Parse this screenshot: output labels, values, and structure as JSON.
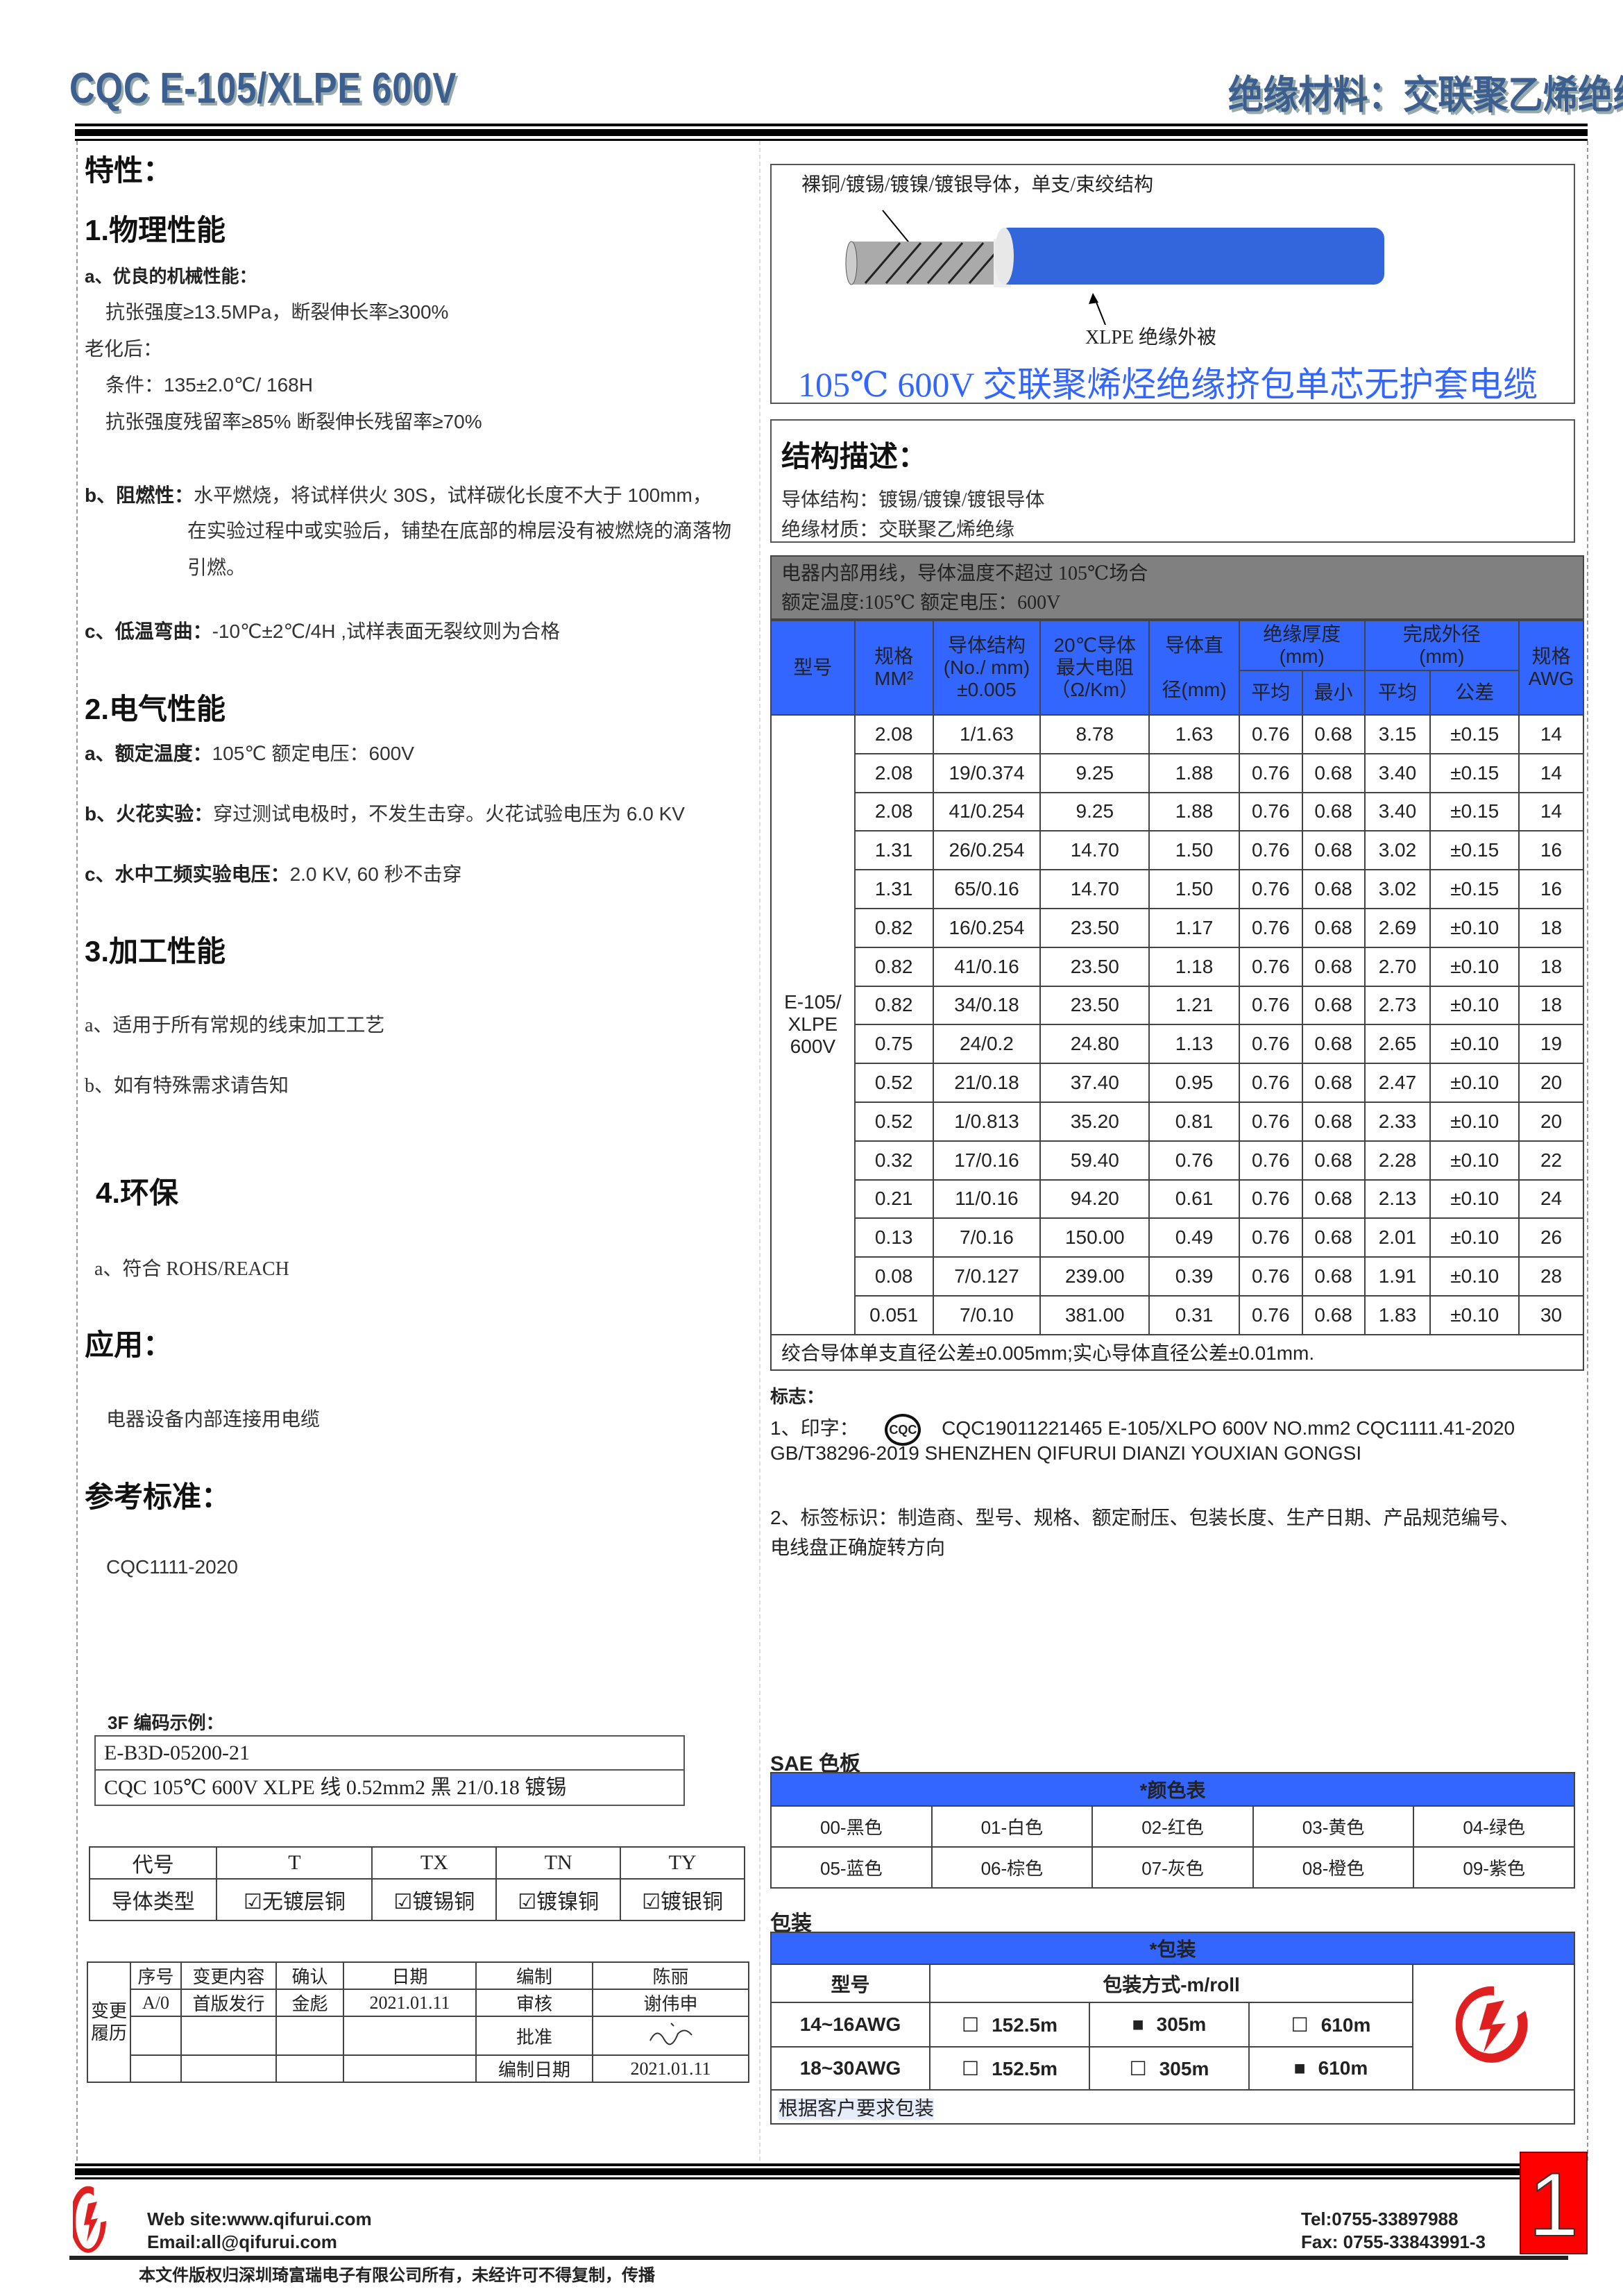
{
  "header": {
    "title": "CQC E-105/XLPE 600V",
    "subtitle": "绝缘材料：交联聚乙烯绝缘"
  },
  "left": {
    "features_title": "特性：",
    "physical": {
      "title": "1.物理性能",
      "a_label": "a、优良的机械性能：",
      "a_line1": "抗张强度≥13.5MPa，断裂伸长率≥300%",
      "aging": "老化后：",
      "cond": "条件：135±2.0℃/ 168H",
      "retain": "抗张强度残留率≥85%  断裂伸长残留率≥70%",
      "b_label": "b、阻燃性：",
      "b_line1": "水平燃烧，将试样供火 30S，试样碳化长度不大于 100mm，",
      "b_line2": "在实验过程中或实验后，铺垫在底部的棉层没有被燃烧的滴落物",
      "b_line3": "引燃。",
      "c_label": "c、低温弯曲：",
      "c_text": "-10℃±2℃/4H ,试样表面无裂纹则为合格"
    },
    "electrical": {
      "title": "2.电气性能",
      "a_label": "a、额定温度：",
      "a_text": "105℃    额定电压：600V",
      "b_label": "b、火花实验：",
      "b_text": "穿过测试电极时，不发生击穿。火花试验电压为 6.0 KV",
      "c_label": "c、水中工频实验电压：",
      "c_text": "2.0 KV, 60 秒不击穿"
    },
    "processing": {
      "title": "3.加工性能",
      "a": "a、适用于所有常规的线束加工工艺",
      "b": "b、如有特殊需求请告知"
    },
    "env": {
      "title": "4.环保",
      "a": "a、符合 ROHS/REACH"
    },
    "application": {
      "title": "应用：",
      "text": "电器设备内部连接用电缆"
    },
    "standard": {
      "title": "参考标准：",
      "text": "CQC1111-2020"
    },
    "code_example": {
      "title": "3F 编码示例：",
      "code": "E-B3D-05200-21",
      "desc": "CQC 105℃  600V XLPE 线  0.52mm2  黑  21/0.18 镀锡"
    },
    "conductor_table": {
      "headers": [
        "代号",
        "T",
        "TX",
        "TN",
        "TY"
      ],
      "row_label": "导体类型",
      "types": [
        "无镀层铜",
        "镀锡铜",
        "镀镍铜",
        "镀银铜"
      ]
    },
    "history": {
      "side_label": "变更履历",
      "headers": [
        "序号",
        "变更内容",
        "确认",
        "日期"
      ],
      "row": [
        "A/0",
        "首版发行",
        "金彪",
        "2021.01.11"
      ],
      "roles": [
        {
          "k": "编制",
          "v": "陈丽"
        },
        {
          "k": "审核",
          "v": "谢伟申"
        },
        {
          "k": "批准",
          "v": ""
        },
        {
          "k": "编制日期",
          "v": "2021.01.11"
        }
      ]
    }
  },
  "right": {
    "cable_caption_top": "裸铜/镀锡/镀镍/镀银导体，单支/束绞结构",
    "cable_caption_bottom": "XLPE  绝缘外被",
    "cable_title": "105℃  600V 交联聚烯烃绝缘挤包单芯无护套电缆",
    "structure": {
      "title": "结构描述：",
      "line1": "导体结构：镀锡/镀镍/镀银导体",
      "line2": "绝缘材质：交联聚乙烯绝缘"
    },
    "usage_line1": "电器内部用线，导体温度不超过  105℃场合",
    "usage_line2": "额定温度:105℃   额定电压：600V",
    "spec_table": {
      "h_model": "型号",
      "h_size": "规格\nMM²",
      "h_struct": "导体结构\n(No./ mm)\n±0.005",
      "h_res": "20℃导体\n最大电阻\n（Ω/Km）",
      "h_dia": "导体直\n\n径(mm)",
      "h_ins": "绝缘厚度\n(mm)",
      "h_od": "完成外径\n(mm)",
      "h_awg": "规格\nAWG",
      "h_avg": "平均",
      "h_min": "最小",
      "h_avg2": "平均",
      "h_tol": "公差",
      "model": "E-105/\nXLPE\n600V",
      "rows": [
        [
          "2.08",
          "1/1.63",
          "8.78",
          "1.63",
          "0.76",
          "0.68",
          "3.15",
          "±0.15",
          "14"
        ],
        [
          "2.08",
          "19/0.374",
          "9.25",
          "1.88",
          "0.76",
          "0.68",
          "3.40",
          "±0.15",
          "14"
        ],
        [
          "2.08",
          "41/0.254",
          "9.25",
          "1.88",
          "0.76",
          "0.68",
          "3.40",
          "±0.15",
          "14"
        ],
        [
          "1.31",
          "26/0.254",
          "14.70",
          "1.50",
          "0.76",
          "0.68",
          "3.02",
          "±0.15",
          "16"
        ],
        [
          "1.31",
          "65/0.16",
          "14.70",
          "1.50",
          "0.76",
          "0.68",
          "3.02",
          "±0.15",
          "16"
        ],
        [
          "0.82",
          "16/0.254",
          "23.50",
          "1.17",
          "0.76",
          "0.68",
          "2.69",
          "±0.10",
          "18"
        ],
        [
          "0.82",
          "41/0.16",
          "23.50",
          "1.18",
          "0.76",
          "0.68",
          "2.70",
          "±0.10",
          "18"
        ],
        [
          "0.82",
          "34/0.18",
          "23.50",
          "1.21",
          "0.76",
          "0.68",
          "2.73",
          "±0.10",
          "18"
        ],
        [
          "0.75",
          "24/0.2",
          "24.80",
          "1.13",
          "0.76",
          "0.68",
          "2.65",
          "±0.10",
          "19"
        ],
        [
          "0.52",
          "21/0.18",
          "37.40",
          "0.95",
          "0.76",
          "0.68",
          "2.47",
          "±0.10",
          "20"
        ],
        [
          "0.52",
          "1/0.813",
          "35.20",
          "0.81",
          "0.76",
          "0.68",
          "2.33",
          "±0.10",
          "20"
        ],
        [
          "0.32",
          "17/0.16",
          "59.40",
          "0.76",
          "0.76",
          "0.68",
          "2.28",
          "±0.10",
          "22"
        ],
        [
          "0.21",
          "11/0.16",
          "94.20",
          "0.61",
          "0.76",
          "0.68",
          "2.13",
          "±0.10",
          "24"
        ],
        [
          "0.13",
          "7/0.16",
          "150.00",
          "0.49",
          "0.76",
          "0.68",
          "2.01",
          "±0.10",
          "26"
        ],
        [
          "0.08",
          "7/0.127",
          "239.00",
          "0.39",
          "0.76",
          "0.68",
          "1.91",
          "±0.10",
          "28"
        ],
        [
          "0.051",
          "7/0.10",
          "381.00",
          "0.31",
          "0.76",
          "0.68",
          "1.83",
          "±0.10",
          "30"
        ]
      ],
      "footnote": "绞合导体单支直径公差±0.005mm;实心导体直径公差±0.01mm."
    },
    "marking": {
      "title": "标志：",
      "l1_label": "1、印字：",
      "cqc_logo": "CQC",
      "l1_text": "CQC19011221465  E-105/XLPO  600V  NO.mm2  CQC1111.41-2020",
      "l1_text2": "GB/T38296-2019 SHENZHEN QIFURUI DIANZI YOUXIAN GONGSI",
      "l2_text": "2、标签标识：制造商、型号、规格、额定耐压、包装长度、生产日期、产品规范编号、",
      "l2_text2": "电线盘正确旋转方向"
    },
    "colors": {
      "title": "SAE 色板",
      "header": "*颜色表",
      "items": [
        "00-黑色",
        "01-白色",
        "02-红色",
        "03-黄色",
        "04-绿色",
        "05-蓝色",
        "06-棕色",
        "07-灰色",
        "08-橙色",
        "09-紫色"
      ]
    },
    "packaging": {
      "title": "包装",
      "header": "*包装",
      "h_model": "型号",
      "h_method": "包装方式-m/roll",
      "rows": [
        {
          "model": "14~16AWG",
          "opts": [
            {
              "v": "152.5m",
              "checked": false
            },
            {
              "v": "305m",
              "checked": true
            },
            {
              "v": "610m",
              "checked": false
            }
          ]
        },
        {
          "model": "18~30AWG",
          "opts": [
            {
              "v": "152.5m",
              "checked": false
            },
            {
              "v": "305m",
              "checked": false
            },
            {
              "v": "610m",
              "checked": true
            }
          ]
        }
      ],
      "note": "根据客户要求包装"
    }
  },
  "footer": {
    "web": "Web site:www.qifurui.com",
    "email": "Email:all@qifurui.com",
    "tel": "Tel:0755-33897988",
    "fax": "Fax: 0755-33843991-3",
    "copyright": "本文件版权归深圳琦富瑞电子有限公司所有，未经许可不得复制，传播",
    "page": "1"
  },
  "colors_theme": {
    "accent": "#3366ff",
    "gray": "#808080",
    "brand_red": "#e02020",
    "title": "#3d5f8f"
  }
}
